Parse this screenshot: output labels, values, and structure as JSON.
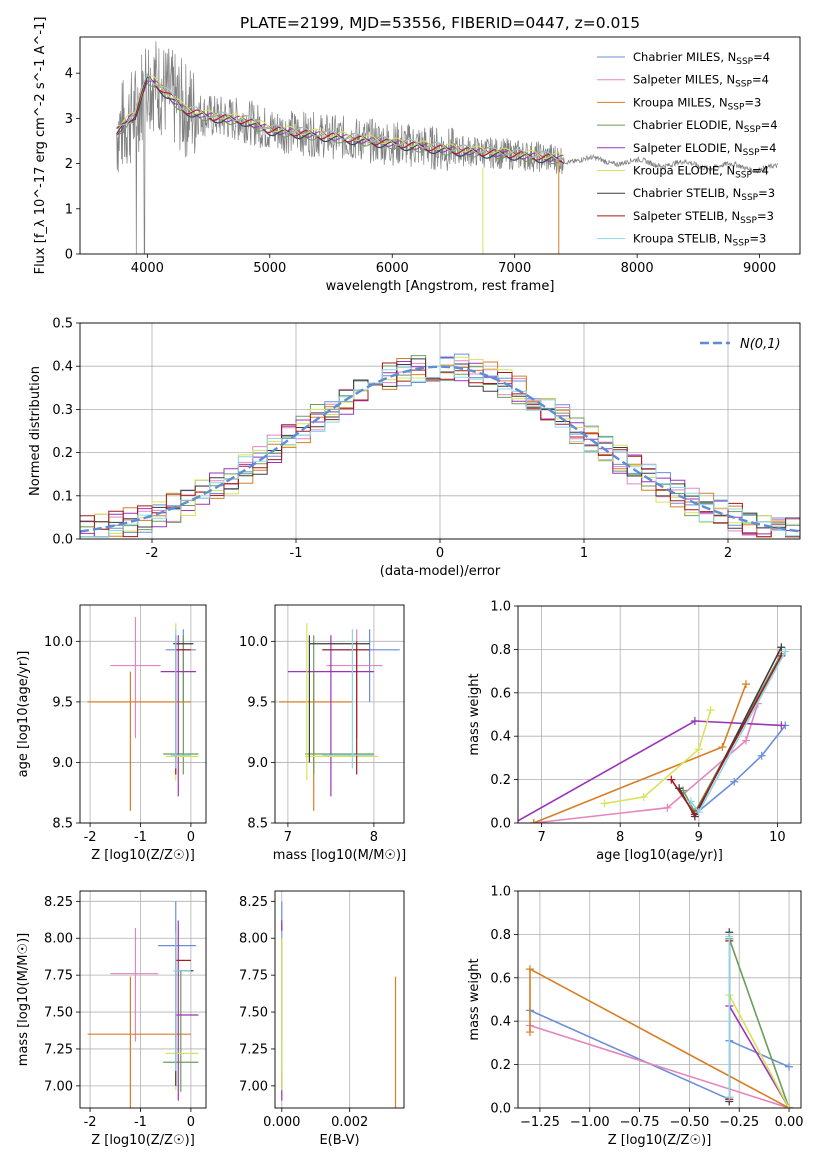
{
  "figure_title": "PLATE=2199, MJD=53556, FIBERID=0447, z=0.015",
  "models": [
    {
      "id": "cm",
      "name": "Chabrier MILES",
      "nssp": "4",
      "color": "#6a8fd8"
    },
    {
      "id": "sm",
      "name": "Salpeter MILES",
      "nssp": "4",
      "color": "#e585c0"
    },
    {
      "id": "km",
      "name": "Kroupa MILES",
      "nssp": "3",
      "color": "#d87e26"
    },
    {
      "id": "ce",
      "name": "Chabrier ELODIE",
      "nssp": "4",
      "color": "#6b9e5a"
    },
    {
      "id": "se",
      "name": "Salpeter ELODIE",
      "nssp": "4",
      "color": "#9b35b8"
    },
    {
      "id": "ke",
      "name": "Kroupa ELODIE",
      "nssp": "4",
      "color": "#d8e35a"
    },
    {
      "id": "cs",
      "name": "Chabrier STELIB",
      "nssp": "3",
      "color": "#3d3d3d"
    },
    {
      "id": "ss",
      "name": "Salpeter STELIB",
      "nssp": "3",
      "color": "#a31a1f"
    },
    {
      "id": "ks",
      "name": "Kroupa STELIB",
      "nssp": "3",
      "color": "#8fd6e8"
    }
  ],
  "chart_data": [
    {
      "id": "spectrum",
      "type": "line",
      "xlabel": "wavelength [Angstrom, rest frame]",
      "ylabel": "Flux [f_λ 10^-17 erg cm^-2 s^-1 A^-1]",
      "xlim": [
        3450,
        9330
      ],
      "ylim": [
        0,
        4.8
      ],
      "xticks": [
        4000,
        5000,
        6000,
        7000,
        8000,
        9000
      ],
      "yticks": [
        0,
        1,
        2,
        3,
        4
      ],
      "grid": false,
      "legend": "top-right",
      "data_color": "#808080",
      "data_range": [
        3750,
        9150
      ],
      "model_continuum": [
        [
          3750,
          2.7
        ],
        [
          3900,
          3.1
        ],
        [
          4000,
          3.9
        ],
        [
          4100,
          3.7
        ],
        [
          4300,
          3.2
        ],
        [
          4500,
          3.05
        ],
        [
          4800,
          2.95
        ],
        [
          5000,
          2.75
        ],
        [
          5500,
          2.6
        ],
        [
          6000,
          2.45
        ],
        [
          6500,
          2.3
        ],
        [
          7000,
          2.2
        ],
        [
          7400,
          2.1
        ]
      ]
    },
    {
      "id": "residuals",
      "type": "histogram",
      "xlabel": "(data-model)/error",
      "ylabel": "Normed distribution",
      "xlim": [
        -2.5,
        2.5
      ],
      "ylim": [
        0,
        0.5
      ],
      "xticks": [
        -2,
        -1,
        0,
        1,
        2
      ],
      "yticks": [
        0.0,
        0.1,
        0.2,
        0.3,
        0.4,
        0.5
      ],
      "grid": true,
      "legend": "top-right",
      "reference": {
        "name": "N(0,1)",
        "color": "#5b8ed6"
      }
    },
    {
      "id": "z-age",
      "type": "scatter",
      "xlabel": "Z [log10(Z/Z☉)]",
      "ylabel": "age  [log10(age/yr)]",
      "xlim": [
        -2.2,
        0.3
      ],
      "ylim": [
        8.5,
        10.3
      ],
      "xticks": [
        -2,
        -1,
        0
      ],
      "yticks": [
        8.5,
        9.0,
        9.5,
        10.0
      ],
      "grid": true,
      "points": [
        {
          "m": "cm",
          "x": -0.15,
          "y": 9.93,
          "ex": [
            -0.5,
            0.1
          ],
          "ey": [
            9.5,
            10.1
          ]
        },
        {
          "m": "sm",
          "x": -1.1,
          "y": 9.8,
          "ex": [
            -1.6,
            -0.6
          ],
          "ey": [
            9.2,
            10.2
          ]
        },
        {
          "m": "km",
          "x": -1.2,
          "y": 9.5,
          "ex": [
            -2.05,
            0.0
          ],
          "ey": [
            8.6,
            9.75
          ]
        },
        {
          "m": "ce",
          "x": -0.15,
          "y": 9.07,
          "ex": [
            -0.55,
            0.15
          ],
          "ey": [
            8.9,
            10.05
          ]
        },
        {
          "m": "se",
          "x": -0.25,
          "y": 9.75,
          "ex": [
            -0.6,
            0.1
          ],
          "ey": [
            8.72,
            10.05
          ]
        },
        {
          "m": "ke",
          "x": -0.3,
          "y": 9.05,
          "ex": [
            -0.5,
            0.15
          ],
          "ey": [
            8.85,
            10.15
          ]
        },
        {
          "m": "cs",
          "x": -0.3,
          "y": 9.98,
          "ex": [
            -0.35,
            0.05
          ],
          "ey": [
            9.0,
            10.05
          ]
        },
        {
          "m": "ss",
          "x": -0.3,
          "y": 9.93,
          "ex": [
            -0.3,
            0.0
          ],
          "ey": [
            8.9,
            10.0
          ]
        },
        {
          "m": "ks",
          "x": -0.3,
          "y": 9.06,
          "ex": [
            -0.4,
            0.0
          ],
          "ey": [
            8.95,
            10.1
          ]
        }
      ]
    },
    {
      "id": "mass-age",
      "type": "scatter",
      "xlabel": "mass [log10(M/M☉)]",
      "ylabel": "",
      "xlim": [
        6.85,
        8.35
      ],
      "ylim": [
        8.5,
        10.3
      ],
      "xticks": [
        7,
        8
      ],
      "yticks": [
        8.5,
        9.0,
        9.5,
        10.0
      ],
      "grid": true,
      "points": [
        {
          "m": "cm",
          "x": 7.95,
          "y": 9.93,
          "ex": [
            7.4,
            8.3
          ],
          "ey": [
            9.5,
            10.1
          ]
        },
        {
          "m": "sm",
          "x": 7.8,
          "y": 9.8,
          "ex": [
            7.45,
            8.1
          ],
          "ey": [
            9.2,
            10.1
          ]
        },
        {
          "m": "km",
          "x": 7.3,
          "y": 9.5,
          "ex": [
            6.9,
            7.75
          ],
          "ey": [
            8.6,
            9.75
          ]
        },
        {
          "m": "ce",
          "x": 7.3,
          "y": 9.07,
          "ex": [
            7.2,
            8.0
          ],
          "ey": [
            8.9,
            10.05
          ]
        },
        {
          "m": "se",
          "x": 7.5,
          "y": 9.75,
          "ex": [
            7.0,
            8.0
          ],
          "ey": [
            8.72,
            10.05
          ]
        },
        {
          "m": "ke",
          "x": 7.22,
          "y": 9.05,
          "ex": [
            7.2,
            8.05
          ],
          "ey": [
            8.85,
            10.15
          ]
        },
        {
          "m": "cs",
          "x": 7.25,
          "y": 9.98,
          "ex": [
            7.25,
            7.95
          ],
          "ey": [
            9.0,
            10.05
          ]
        },
        {
          "m": "ss",
          "x": 7.8,
          "y": 9.93,
          "ex": [
            7.4,
            7.95
          ],
          "ey": [
            8.9,
            10.0
          ]
        },
        {
          "m": "ks",
          "x": 7.75,
          "y": 9.06,
          "ex": [
            7.4,
            8.0
          ],
          "ey": [
            8.95,
            10.1
          ]
        }
      ]
    },
    {
      "id": "age-weight",
      "type": "line",
      "xlabel": "age  [log10(age/yr)]",
      "ylabel": "mass weight",
      "xlim": [
        6.7,
        10.3
      ],
      "ylim": [
        0,
        1.0
      ],
      "xticks": [
        7,
        8,
        9,
        10
      ],
      "yticks": [
        0.0,
        0.2,
        0.4,
        0.6,
        0.8,
        1.0
      ],
      "grid": true,
      "series": [
        {
          "m": "cm",
          "x": [
            8.95,
            9.45,
            9.8,
            10.1
          ],
          "y": [
            0.04,
            0.19,
            0.31,
            0.45
          ]
        },
        {
          "m": "sm",
          "x": 6.9,
          "xs": [
            6.9,
            8.6,
            9.6,
            9.75
          ],
          "y": [
            0.0,
            0.07,
            0.38,
            0.55
          ]
        },
        {
          "m": "km",
          "x": [
            6.9,
            9.3,
            9.6
          ],
          "y": [
            0.0,
            0.35,
            0.64
          ]
        },
        {
          "m": "ce",
          "x": [
            8.8,
            8.95,
            10.05
          ],
          "y": [
            0.15,
            0.05,
            0.78
          ]
        },
        {
          "m": "se",
          "x": [
            6.65,
            8.95,
            10.05
          ],
          "y": [
            0.0,
            0.47,
            0.45
          ]
        },
        {
          "m": "ke",
          "x": [
            7.8,
            8.3,
            9.0,
            9.15
          ],
          "y": [
            0.09,
            0.12,
            0.34,
            0.52
          ]
        },
        {
          "m": "cs",
          "x": [
            8.75,
            8.95,
            10.05
          ],
          "y": [
            0.16,
            0.03,
            0.81
          ]
        },
        {
          "m": "ss",
          "x": [
            8.65,
            8.95,
            10.05
          ],
          "y": [
            0.2,
            0.04,
            0.77
          ]
        },
        {
          "m": "ks",
          "x": [
            8.9,
            9.0,
            10.1
          ],
          "y": [
            0.1,
            0.05,
            0.79
          ]
        }
      ]
    },
    {
      "id": "z-mass",
      "type": "scatter",
      "xlabel": "Z [log10(Z/Z☉)]",
      "ylabel": "mass [log10(M/M☉)]",
      "xlim": [
        -2.2,
        0.3
      ],
      "ylim": [
        6.85,
        8.32
      ],
      "xticks": [
        -2,
        -1,
        0
      ],
      "yticks": [
        7.0,
        7.25,
        7.5,
        7.75,
        8.0,
        8.25
      ],
      "grid": true,
      "points": [
        {
          "m": "cm",
          "x": -0.3,
          "y": 7.95,
          "ex": [
            -0.65,
            0.1
          ],
          "ey": [
            7.6,
            8.25
          ]
        },
        {
          "m": "sm",
          "x": -1.1,
          "y": 7.76,
          "ex": [
            -1.6,
            -0.65
          ],
          "ey": [
            7.3,
            8.07
          ]
        },
        {
          "m": "km",
          "x": -1.2,
          "y": 7.35,
          "ex": [
            -2.05,
            0.0
          ],
          "ey": [
            6.82,
            7.74
          ]
        },
        {
          "m": "ce",
          "x": -0.2,
          "y": 7.16,
          "ex": [
            -0.55,
            0.15
          ],
          "ey": [
            6.96,
            7.78
          ]
        },
        {
          "m": "se",
          "x": -0.25,
          "y": 7.48,
          "ex": [
            -0.3,
            0.15
          ],
          "ey": [
            6.9,
            8.12
          ]
        },
        {
          "m": "ke",
          "x": -0.3,
          "y": 7.22,
          "ex": [
            -0.5,
            0.15
          ],
          "ey": [
            6.97,
            8.0
          ]
        },
        {
          "m": "cs",
          "x": -0.3,
          "y": 7.78,
          "ex": [
            -0.3,
            0.05
          ],
          "ey": [
            7.0,
            8.0
          ]
        },
        {
          "m": "ss",
          "x": -0.3,
          "y": 7.85,
          "ex": [
            -0.3,
            0.0
          ],
          "ey": [
            7.3,
            8.05
          ]
        },
        {
          "m": "ks",
          "x": -0.3,
          "y": 7.78,
          "ex": [
            -0.35,
            0.0
          ],
          "ey": [
            7.1,
            8.05
          ]
        }
      ]
    },
    {
      "id": "ebv-mass",
      "type": "scatter",
      "xlabel": "E(B-V)",
      "ylabel": "",
      "xlim": [
        -0.0002,
        0.0036
      ],
      "ylim": [
        6.85,
        8.32
      ],
      "xticks": [
        0.0,
        0.002
      ],
      "ytick_labels": [
        "7.00",
        "7.25",
        "7.50",
        "7.75",
        "8.00",
        "8.25"
      ],
      "grid": true,
      "points": [
        {
          "m": "km",
          "x": 0.00335,
          "ey": [
            6.82,
            7.74
          ]
        },
        {
          "m": "cm",
          "x": 0.0,
          "ey": [
            7.6,
            8.25
          ]
        },
        {
          "m": "se",
          "x": 0.0,
          "ey": [
            6.9,
            8.12
          ]
        },
        {
          "m": "ss",
          "x": 0.0,
          "ey": [
            7.3,
            8.05
          ]
        },
        {
          "m": "ks",
          "x": 0.0,
          "ey": [
            7.1,
            8.05
          ]
        },
        {
          "m": "ke",
          "x": 0.0,
          "ey": [
            6.97,
            8.0
          ]
        }
      ]
    },
    {
      "id": "z-weight",
      "type": "line",
      "xlabel": "Z [log10(Z/Z☉)]",
      "ylabel": "mass weight",
      "xlim": [
        -1.36,
        0.06
      ],
      "ylim": [
        0,
        1.0
      ],
      "xticks": [
        -1.25,
        -1.0,
        -0.75,
        -0.5,
        -0.25,
        0.0
      ],
      "yticks": [
        0.0,
        0.2,
        0.4,
        0.6,
        0.8,
        1.0
      ],
      "grid": true,
      "series": [
        {
          "m": "cm",
          "x": [
            -1.3,
            -0.3,
            -0.3,
            0.0
          ],
          "y": [
            0.45,
            0.04,
            0.31,
            0.19
          ]
        },
        {
          "m": "sm",
          "x": [
            -1.3,
            0.0
          ],
          "y": [
            0.38,
            0.0
          ]
        },
        {
          "m": "km",
          "x": [
            -1.3,
            -1.3,
            0.0
          ],
          "y": [
            0.35,
            0.64,
            0.0
          ]
        },
        {
          "m": "ce",
          "x": [
            -0.3,
            -0.3,
            0.0
          ],
          "y": [
            0.05,
            0.78,
            0.0
          ]
        },
        {
          "m": "se",
          "x": [
            -0.3,
            0.0
          ],
          "y": [
            0.47,
            0.0
          ]
        },
        {
          "m": "ke",
          "x": [
            -0.3,
            0.0
          ],
          "y": [
            0.52,
            0.0
          ]
        },
        {
          "m": "cs",
          "x": [
            -0.3,
            -0.3
          ],
          "y": [
            0.03,
            0.81
          ]
        },
        {
          "m": "ss",
          "x": [
            -0.3,
            -0.3
          ],
          "y": [
            0.04,
            0.77
          ]
        },
        {
          "m": "ks",
          "x": [
            -0.3,
            -0.3
          ],
          "y": [
            0.05,
            0.79
          ]
        }
      ]
    }
  ]
}
